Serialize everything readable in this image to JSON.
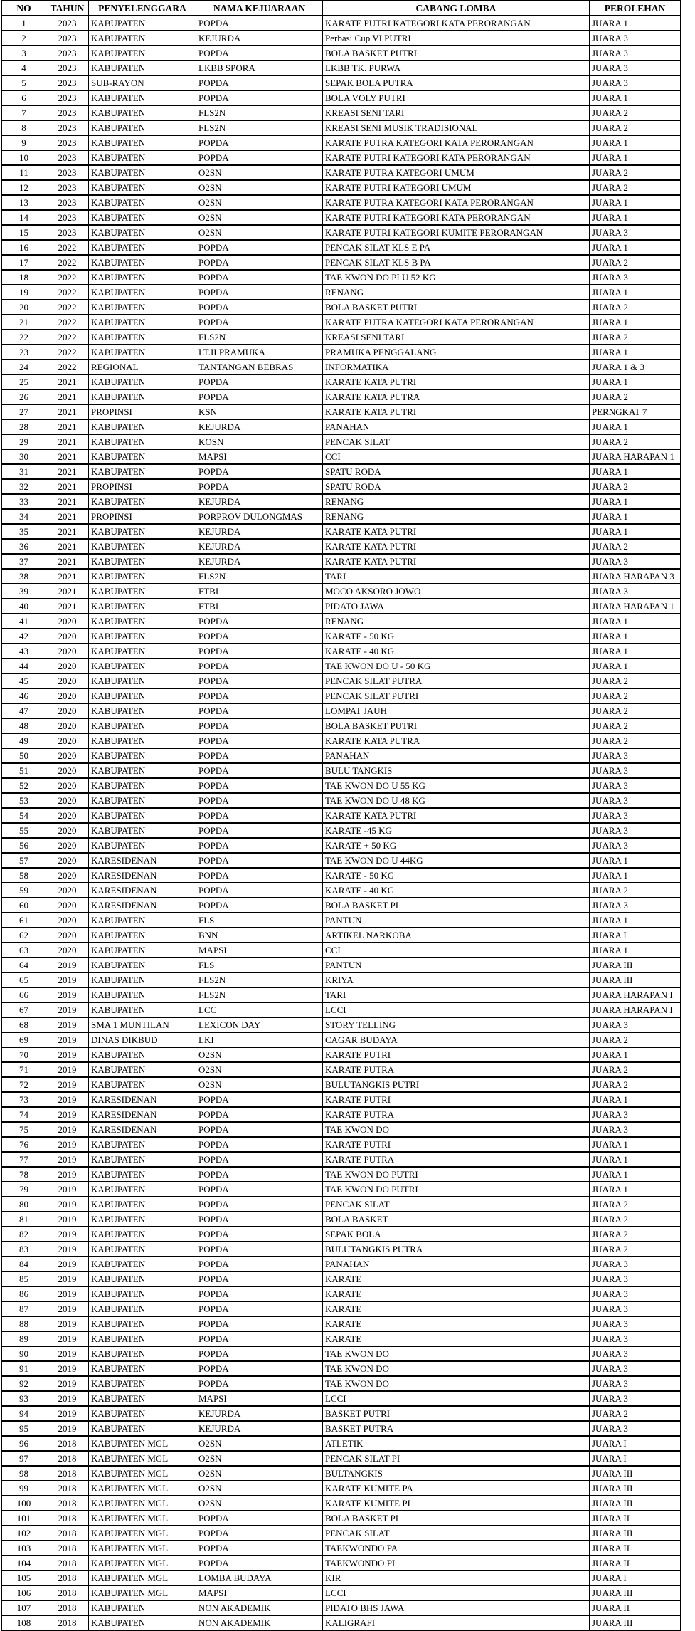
{
  "table": {
    "columns": [
      "NO",
      "TAHUN",
      "PENYELENGGARA",
      "NAMA KEJUARAAN",
      "CABANG LOMBA",
      "PEROLEHAN"
    ],
    "rows": [
      [
        "1",
        "2023",
        "KABUPATEN",
        "POPDA",
        "KARATE PUTRI KATEGORI KATA PERORANGAN",
        "JUARA 1"
      ],
      [
        "2",
        "2023",
        "KABUPATEN",
        "KEJURDA",
        "Perbasi Cup VI PUTRI",
        "JUARA 3"
      ],
      [
        "3",
        "2023",
        "KABUPATEN",
        "POPDA",
        "BOLA BASKET PUTRI",
        "JUARA 3"
      ],
      [
        "4",
        "2023",
        "KABUPATEN",
        "LKBB SPORA",
        "LKBB TK. PURWA",
        "JUARA 3"
      ],
      [
        "5",
        "2023",
        "SUB-RAYON",
        "POPDA",
        "SEPAK BOLA PUTRA",
        "JUARA 3"
      ],
      [
        "6",
        "2023",
        "KABUPATEN",
        "POPDA",
        "BOLA VOLY PUTRI",
        "JUARA 1"
      ],
      [
        "7",
        "2023",
        "KABUPATEN",
        "FLS2N",
        "KREASI SENI TARI",
        "JUARA 2"
      ],
      [
        "8",
        "2023",
        "KABUPATEN",
        "FLS2N",
        "KREASI SENI MUSIK TRADISIONAL",
        "JUARA 2"
      ],
      [
        "9",
        "2023",
        "KABUPATEN",
        "POPDA",
        "KARATE PUTRA KATEGORI KATA PERORANGAN",
        "JUARA 1"
      ],
      [
        "10",
        "2023",
        "KABUPATEN",
        "POPDA",
        "KARATE PUTRI KATEGORI KATA PERORANGAN",
        "JUARA 1"
      ],
      [
        "11",
        "2023",
        "KABUPATEN",
        "O2SN",
        "KARATE PUTRA KATEGORI UMUM",
        "JUARA 2"
      ],
      [
        "12",
        "2023",
        "KABUPATEN",
        "O2SN",
        "KARATE PUTRI KATEGORI UMUM",
        "JUARA 2"
      ],
      [
        "13",
        "2023",
        "KABUPATEN",
        "O2SN",
        "KARATE PUTRA KATEGORI KATA PERORANGAN",
        "JUARA 1"
      ],
      [
        "14",
        "2023",
        "KABUPATEN",
        "O2SN",
        "KARATE PUTRI KATEGORI KATA PERORANGAN",
        "JUARA 1"
      ],
      [
        "15",
        "2023",
        "KABUPATEN",
        "O2SN",
        "KARATE PUTRI KATEGORI KUMITE PERORANGAN",
        "JUARA 3"
      ],
      [
        "16",
        "2022",
        "KABUPATEN",
        "POPDA",
        "PENCAK SILAT KLS E PA",
        "JUARA 1"
      ],
      [
        "17",
        "2022",
        "KABUPATEN",
        "POPDA",
        "PENCAK SILAT KLS B PA",
        "JUARA 2"
      ],
      [
        "18",
        "2022",
        "KABUPATEN",
        "POPDA",
        "TAE KWON DO PI U 52 KG",
        "JUARA 3"
      ],
      [
        "19",
        "2022",
        "KABUPATEN",
        "POPDA",
        "RENANG",
        "JUARA 1"
      ],
      [
        "20",
        "2022",
        "KABUPATEN",
        "POPDA",
        "BOLA BASKET PUTRI",
        "JUARA 2"
      ],
      [
        "21",
        "2022",
        "KABUPATEN",
        "POPDA",
        "KARATE PUTRA KATEGORI KATA PERORANGAN",
        "JUARA 1"
      ],
      [
        "22",
        "2022",
        "KABUPATEN",
        "FLS2N",
        "KREASI SENI TARI",
        "JUARA 2"
      ],
      [
        "23",
        "2022",
        "KABUPATEN",
        "LT.II PRAMUKA",
        "PRAMUKA PENGGALANG",
        "JUARA 1"
      ],
      [
        "24",
        "2022",
        "REGIONAL",
        "TANTANGAN BEBRAS",
        "INFORMATIKA",
        "JUARA 1 & 3"
      ],
      [
        "25",
        "2021",
        "KABUPATEN",
        "POPDA",
        "KARATE KATA PUTRI",
        "JUARA 1"
      ],
      [
        "26",
        "2021",
        "KABUPATEN",
        "POPDA",
        "KARATE KATA PUTRA",
        "JUARA 2"
      ],
      [
        "27",
        "2021",
        "PROPINSI",
        "KSN",
        "KARATE KATA PUTRI",
        "PERNGKAT 7"
      ],
      [
        "28",
        "2021",
        "KABUPATEN",
        "KEJURDA",
        "PANAHAN",
        "JUARA 1"
      ],
      [
        "29",
        "2021",
        "KABUPATEN",
        "KOSN",
        "PENCAK SILAT",
        "JUARA 2"
      ],
      [
        "30",
        "2021",
        "KABUPATEN",
        "MAPSI",
        "CCI",
        "JUARA HARAPAN 1"
      ],
      [
        "31",
        "2021",
        "KABUPATEN",
        "POPDA",
        "SPATU RODA",
        "JUARA 1"
      ],
      [
        "32",
        "2021",
        "PROPINSI",
        "POPDA",
        "SPATU RODA",
        "JUARA 2"
      ],
      [
        "33",
        "2021",
        "KABUPATEN",
        "KEJURDA",
        "RENANG",
        "JUARA 1"
      ],
      [
        "34",
        "2021",
        "PROPINSI",
        "PORPROV DULONGMAS",
        "RENANG",
        "JUARA 1"
      ],
      [
        "35",
        "2021",
        "KABUPATEN",
        "KEJURDA",
        "KARATE KATA PUTRI",
        "JUARA 1"
      ],
      [
        "36",
        "2021",
        "KABUPATEN",
        "KEJURDA",
        "KARATE KATA PUTRI",
        "JUARA 2"
      ],
      [
        "37",
        "2021",
        "KABUPATEN",
        "KEJURDA",
        "KARATE KATA PUTRI",
        "JUARA 3"
      ],
      [
        "38",
        "2021",
        "KABUPATEN",
        "FLS2N",
        "TARI",
        "JUARA HARAPAN 3"
      ],
      [
        "39",
        "2021",
        "KABUPATEN",
        "FTBI",
        "MOCO AKSORO JOWO",
        "JUARA 3"
      ],
      [
        "40",
        "2021",
        "KABUPATEN",
        "FTBI",
        "PIDATO JAWA",
        "JUARA HARAPAN 1"
      ],
      [
        "41",
        "2020",
        "KABUPATEN",
        "POPDA",
        "RENANG",
        "JUARA 1"
      ],
      [
        "42",
        "2020",
        "KABUPATEN",
        "POPDA",
        "KARATE - 50 KG",
        "JUARA 1"
      ],
      [
        "43",
        "2020",
        "KABUPATEN",
        "POPDA",
        "KARATE - 40 KG",
        "JUARA 1"
      ],
      [
        "44",
        "2020",
        "KABUPATEN",
        "POPDA",
        "TAE KWON DO U - 50 KG",
        "JUARA 1"
      ],
      [
        "45",
        "2020",
        "KABUPATEN",
        "POPDA",
        "PENCAK SILAT PUTRA",
        "JUARA 2"
      ],
      [
        "46",
        "2020",
        "KABUPATEN",
        "POPDA",
        "PENCAK SILAT PUTRI",
        "JUARA 2"
      ],
      [
        "47",
        "2020",
        "KABUPATEN",
        "POPDA",
        "LOMPAT JAUH",
        "JUARA 2"
      ],
      [
        "48",
        "2020",
        "KABUPATEN",
        "POPDA",
        "BOLA BASKET PUTRI",
        "JUARA 2"
      ],
      [
        "49",
        "2020",
        "KABUPATEN",
        "POPDA",
        "KARATE KATA PUTRA",
        "JUARA 2"
      ],
      [
        "50",
        "2020",
        "KABUPATEN",
        "POPDA",
        "PANAHAN",
        "JUARA 3"
      ],
      [
        "51",
        "2020",
        "KABUPATEN",
        "POPDA",
        "BULU TANGKIS",
        "JUARA 3"
      ],
      [
        "52",
        "2020",
        "KABUPATEN",
        "POPDA",
        "TAE KWON DO U 55 KG",
        "JUARA 3"
      ],
      [
        "53",
        "2020",
        "KABUPATEN",
        "POPDA",
        "TAE KWON DO U 48 KG",
        "JUARA 3"
      ],
      [
        "54",
        "2020",
        "KABUPATEN",
        "POPDA",
        "KARATE KATA PUTRI",
        "JUARA 3"
      ],
      [
        "55",
        "2020",
        "KABUPATEN",
        "POPDA",
        "KARATE -45 KG",
        "JUARA 3"
      ],
      [
        "56",
        "2020",
        "KABUPATEN",
        "POPDA",
        "KARATE + 50 KG",
        "JUARA 3"
      ],
      [
        "57",
        "2020",
        "KARESIDENAN",
        "POPDA",
        "TAE KWON DO U 44KG",
        "JUARA 1"
      ],
      [
        "58",
        "2020",
        "KARESIDENAN",
        "POPDA",
        "KARATE - 50 KG",
        "JUARA 1"
      ],
      [
        "59",
        "2020",
        "KARESIDENAN",
        "POPDA",
        "KARATE - 40 KG",
        "JUARA 2"
      ],
      [
        "60",
        "2020",
        "KARESIDENAN",
        "POPDA",
        "BOLA BASKET PI",
        "JUARA 3"
      ],
      [
        "61",
        "2020",
        "KABUPATEN",
        "FLS",
        "PANTUN",
        "JUARA 1"
      ],
      [
        "62",
        "2020",
        "KABUPATEN",
        "BNN",
        "ARTIKEL NARKOBA",
        "JUARA I"
      ],
      [
        "63",
        "2020",
        "KABUPATEN",
        "MAPSI",
        "CCI",
        "JUARA 1"
      ],
      [
        "64",
        "2019",
        "KABUPATEN",
        "FLS",
        "PANTUN",
        "JUARA III"
      ],
      [
        "65",
        "2019",
        "KABUPATEN",
        "FLS2N",
        "KRIYA",
        "JUARA III"
      ],
      [
        "66",
        "2019",
        "KABUPATEN",
        "FLS2N",
        "TARI",
        "JUARA HARAPAN I"
      ],
      [
        "67",
        "2019",
        "KABUPATEN",
        "LCC",
        "LCCI",
        "JUARA HARAPAN I"
      ],
      [
        "68",
        "2019",
        "SMA 1 MUNTILAN",
        "LEXICON DAY",
        "STORY TELLING",
        "JUARA 3"
      ],
      [
        "69",
        "2019",
        "DINAS DIKBUD",
        "LKI",
        "CAGAR BUDAYA",
        "JUARA 2"
      ],
      [
        "70",
        "2019",
        "KABUPATEN",
        "O2SN",
        "KARATE PUTRI",
        "JUARA 1"
      ],
      [
        "71",
        "2019",
        "KABUPATEN",
        "O2SN",
        "KARATE PUTRA",
        "JUARA 2"
      ],
      [
        "72",
        "2019",
        "KABUPATEN",
        "O2SN",
        "BULUTANGKIS PUTRI",
        "JUARA 2"
      ],
      [
        "73",
        "2019",
        "KARESIDENAN",
        "POPDA",
        "KARATE PUTRI",
        "JUARA 1"
      ],
      [
        "74",
        "2019",
        "KARESIDENAN",
        "POPDA",
        "KARATE PUTRA",
        "JUARA 3"
      ],
      [
        "75",
        "2019",
        "KARESIDENAN",
        "POPDA",
        "TAE KWON DO",
        "JUARA 3"
      ],
      [
        "76",
        "2019",
        "KABUPATEN",
        "POPDA",
        "KARATE PUTRI",
        "JUARA 1"
      ],
      [
        "77",
        "2019",
        "KABUPATEN",
        "POPDA",
        "KARATE PUTRA",
        "JUARA 1"
      ],
      [
        "78",
        "2019",
        "KABUPATEN",
        "POPDA",
        "TAE KWON DO PUTRI",
        "JUARA 1"
      ],
      [
        "79",
        "2019",
        "KABUPATEN",
        "POPDA",
        "TAE KWON DO PUTRI",
        "JUARA 1"
      ],
      [
        "80",
        "2019",
        "KABUPATEN",
        "POPDA",
        "PENCAK SILAT",
        "JUARA 2"
      ],
      [
        "81",
        "2019",
        "KABUPATEN",
        "POPDA",
        "BOLA BASKET",
        "JUARA 2"
      ],
      [
        "82",
        "2019",
        "KABUPATEN",
        "POPDA",
        "SEPAK BOLA",
        "JUARA 2"
      ],
      [
        "83",
        "2019",
        "KABUPATEN",
        "POPDA",
        "BULUTANGKIS PUTRA",
        "JUARA 2"
      ],
      [
        "84",
        "2019",
        "KABUPATEN",
        "POPDA",
        "PANAHAN",
        "JUARA 3"
      ],
      [
        "85",
        "2019",
        "KABUPATEN",
        "POPDA",
        "KARATE",
        "JUARA 3"
      ],
      [
        "86",
        "2019",
        "KABUPATEN",
        "POPDA",
        "KARATE",
        "JUARA 3"
      ],
      [
        "87",
        "2019",
        "KABUPATEN",
        "POPDA",
        "KARATE",
        "JUARA 3"
      ],
      [
        "88",
        "2019",
        "KABUPATEN",
        "POPDA",
        "KARATE",
        "JUARA 3"
      ],
      [
        "89",
        "2019",
        "KABUPATEN",
        "POPDA",
        "KARATE",
        "JUARA 3"
      ],
      [
        "90",
        "2019",
        "KABUPATEN",
        "POPDA",
        "TAE KWON DO",
        "JUARA 3"
      ],
      [
        "91",
        "2019",
        "KABUPATEN",
        "POPDA",
        "TAE KWON DO",
        "JUARA 3"
      ],
      [
        "92",
        "2019",
        "KABUPATEN",
        "POPDA",
        "TAE KWON DO",
        "JUARA 3"
      ],
      [
        "93",
        "2019",
        "KABUPATEN",
        "MAPSI",
        "LCCI",
        "JUARA 3"
      ],
      [
        "94",
        "2019",
        "KABUPATEN",
        "KEJURDA",
        "BASKET PUTRI",
        "JUARA 2"
      ],
      [
        "95",
        "2019",
        "KABUPATEN",
        "KEJURDA",
        "BASKET PUTRA",
        "JUARA 3"
      ],
      [
        "96",
        "2018",
        "KABUPATEN MGL",
        "O2SN",
        "ATLETIK",
        "JUARA I"
      ],
      [
        "97",
        "2018",
        "KABUPATEN MGL",
        "O2SN",
        "PENCAK SILAT PI",
        "JUARA I"
      ],
      [
        "98",
        "2018",
        "KABUPATEN MGL",
        "O2SN",
        "BULTANGKIS",
        "JUARA III"
      ],
      [
        "99",
        "2018",
        "KABUPATEN MGL",
        "O2SN",
        "KARATE KUMITE PA",
        "JUARA III"
      ],
      [
        "100",
        "2018",
        "KABUPATEN MGL",
        "O2SN",
        "KARATE KUMITE PI",
        "JUARA III"
      ],
      [
        "101",
        "2018",
        "KABUPATEN MGL",
        "POPDA",
        "BOLA BASKET PI",
        "JUARA II"
      ],
      [
        "102",
        "2018",
        "KABUPATEN MGL",
        "POPDA",
        "PENCAK SILAT",
        "JUARA III"
      ],
      [
        "103",
        "2018",
        "KABUPATEN MGL",
        "POPDA",
        "TAEKWONDO PA",
        "JUARA II"
      ],
      [
        "104",
        "2018",
        "KABUPATEN MGL",
        "POPDA",
        "TAEKWONDO PI",
        "JUARA II"
      ],
      [
        "105",
        "2018",
        "KABUPATEN MGL",
        "LOMBA BUDAYA",
        "KIR",
        "JUARA I"
      ],
      [
        "106",
        "2018",
        "KABUPATEN MGL",
        "MAPSI",
        "LCCI",
        "JUARA III"
      ],
      [
        "107",
        "2018",
        "KABUPATEN",
        "NON AKADEMIK",
        "PIDATO BHS JAWA",
        "JUARA II"
      ],
      [
        "108",
        "2018",
        "KABUPATEN",
        "NON AKADEMIK",
        "KALIGRAFI",
        "JUARA III"
      ]
    ]
  },
  "colors": {
    "border": "#000000",
    "text": "#000000",
    "background": "#ffffff"
  }
}
